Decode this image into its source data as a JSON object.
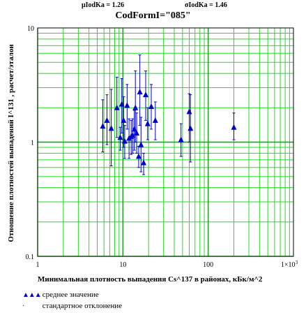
{
  "header": {
    "mu_text": "μIodKa = 1.26",
    "sigma_text": "σIodKa = 1.46",
    "title": "CodFormI=\"085\""
  },
  "legend": {
    "mean_marker": "▲▲▲",
    "mean_label": "среднее значение",
    "sd_marker": "·",
    "sd_label": "стандартное отклонение"
  },
  "colors": {
    "grid": "#22dd22",
    "marker": "#0000cc",
    "errorbar": "#0000cc",
    "axis": "#000000"
  },
  "chart_data": {
    "type": "scatter",
    "title": "CodFormI=\"085\"",
    "xlabel": "Минимальная плотность выпадения Cs^137  в районах, кБк/м^2",
    "ylabel": "Отношение плотностей выпадений I^131 , расчет/эталон",
    "x_scale": "log",
    "y_scale": "log",
    "xlim": [
      1,
      1000
    ],
    "ylim": [
      0.1,
      10
    ],
    "grid": true,
    "x_ticks": [
      {
        "value": 1,
        "label": "1"
      },
      {
        "value": 10,
        "label": "10"
      },
      {
        "value": 100,
        "label": "100"
      },
      {
        "value": 1000,
        "label": "1×10",
        "sup": "3"
      }
    ],
    "y_ticks": [
      {
        "value": 0.1,
        "label": "0.1"
      },
      {
        "value": 1,
        "label": "1"
      },
      {
        "value": 10,
        "label": "10"
      }
    ],
    "series": [
      {
        "name": "среднее значение",
        "points": [
          {
            "x": 5.8,
            "y": 1.38,
            "lo": 0.82,
            "hi": 2.35
          },
          {
            "x": 6.5,
            "y": 1.55,
            "lo": 0.95,
            "hi": 2.6
          },
          {
            "x": 7.3,
            "y": 1.32,
            "lo": 0.62,
            "hi": 2.9
          },
          {
            "x": 8.5,
            "y": 2.0,
            "lo": 1.1,
            "hi": 3.7
          },
          {
            "x": 9.3,
            "y": 1.1,
            "lo": 0.85,
            "hi": 1.35
          },
          {
            "x": 9.7,
            "y": 2.15,
            "lo": 1.2,
            "hi": 3.6
          },
          {
            "x": 10.2,
            "y": 1.55,
            "lo": 0.9,
            "hi": 2.5
          },
          {
            "x": 10.5,
            "y": 1.02,
            "lo": 0.72,
            "hi": 1.4
          },
          {
            "x": 11.2,
            "y": 2.1,
            "lo": 1.3,
            "hi": 3.2
          },
          {
            "x": 11.8,
            "y": 1.08,
            "lo": 0.72,
            "hi": 1.6
          },
          {
            "x": 12.5,
            "y": 1.12,
            "lo": 0.78,
            "hi": 1.55
          },
          {
            "x": 13.0,
            "y": 1.15,
            "lo": 0.8,
            "hi": 1.6
          },
          {
            "x": 13.6,
            "y": 1.3,
            "lo": 0.85,
            "hi": 1.9
          },
          {
            "x": 14.0,
            "y": 2.0,
            "lo": 1.0,
            "hi": 4.2
          },
          {
            "x": 14.5,
            "y": 1.2,
            "lo": 0.8,
            "hi": 1.8
          },
          {
            "x": 15.3,
            "y": 0.75,
            "lo": 0.6,
            "hi": 0.92
          },
          {
            "x": 15.8,
            "y": 2.75,
            "lo": 1.4,
            "hi": 5.8
          },
          {
            "x": 16.3,
            "y": 0.95,
            "lo": 0.55,
            "hi": 1.65
          },
          {
            "x": 17.5,
            "y": 0.66,
            "lo": 0.52,
            "hi": 0.8
          },
          {
            "x": 18.5,
            "y": 2.6,
            "lo": 1.55,
            "hi": 4.2
          },
          {
            "x": 19.5,
            "y": 1.45,
            "lo": 1.05,
            "hi": 2.0
          },
          {
            "x": 21.5,
            "y": 2.05,
            "lo": 1.3,
            "hi": 3.2
          },
          {
            "x": 24.0,
            "y": 1.55,
            "lo": 1.05,
            "hi": 2.25
          },
          {
            "x": 48.0,
            "y": 1.05,
            "lo": 0.75,
            "hi": 1.45
          },
          {
            "x": 60.0,
            "y": 1.85,
            "lo": 1.0,
            "hi": 2.65
          },
          {
            "x": 62.0,
            "y": 1.32,
            "lo": 0.67,
            "hi": 2.6
          },
          {
            "x": 200.0,
            "y": 1.35,
            "lo": 1.05,
            "hi": 1.8
          }
        ]
      }
    ]
  }
}
